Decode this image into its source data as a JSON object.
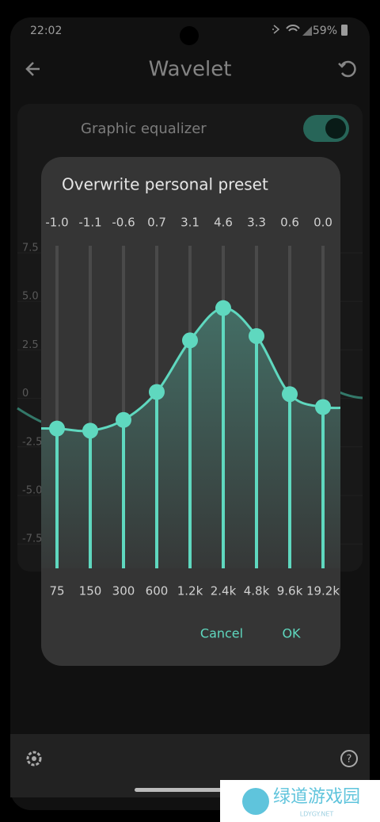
{
  "status_bar": {
    "time": "22:02",
    "battery": "59%"
  },
  "header": {
    "title": "Wavelet"
  },
  "card": {
    "title": "Graphic equalizer",
    "axis_labels": [
      "7.5",
      "5.0",
      "2.5",
      "0",
      "-2.5",
      "-5.0",
      "-7.5"
    ]
  },
  "dialog": {
    "title": "Overwrite personal preset",
    "slider_range": [
      -7.5,
      7.5
    ],
    "bands": [
      {
        "frequency": "75",
        "gain": {
          "value": -1.0,
          "label": "-1.0"
        }
      },
      {
        "frequency": "150",
        "gain": {
          "value": -1.1,
          "label": "-1.1"
        }
      },
      {
        "frequency": "300",
        "gain": {
          "value": -0.6,
          "label": "-0.6"
        }
      },
      {
        "frequency": "600",
        "gain": {
          "value": 0.7,
          "label": "0.7"
        }
      },
      {
        "frequency": "1.2k",
        "gain": {
          "value": 3.1,
          "label": "3.1"
        }
      },
      {
        "frequency": "2.4k",
        "gain": {
          "value": 4.6,
          "label": "4.6"
        }
      },
      {
        "frequency": "4.8k",
        "gain": {
          "value": 3.3,
          "label": "3.3"
        }
      },
      {
        "frequency": "9.6k",
        "gain": {
          "value": 0.6,
          "label": "0.6"
        }
      },
      {
        "frequency": "19.2k",
        "gain": {
          "value": 0.0,
          "label": "0.0"
        }
      }
    ],
    "buttons": {
      "cancel": "Cancel",
      "ok": "OK"
    }
  },
  "watermark": {
    "name": "绿道游戏园",
    "site": "LDYGY.NET"
  }
}
